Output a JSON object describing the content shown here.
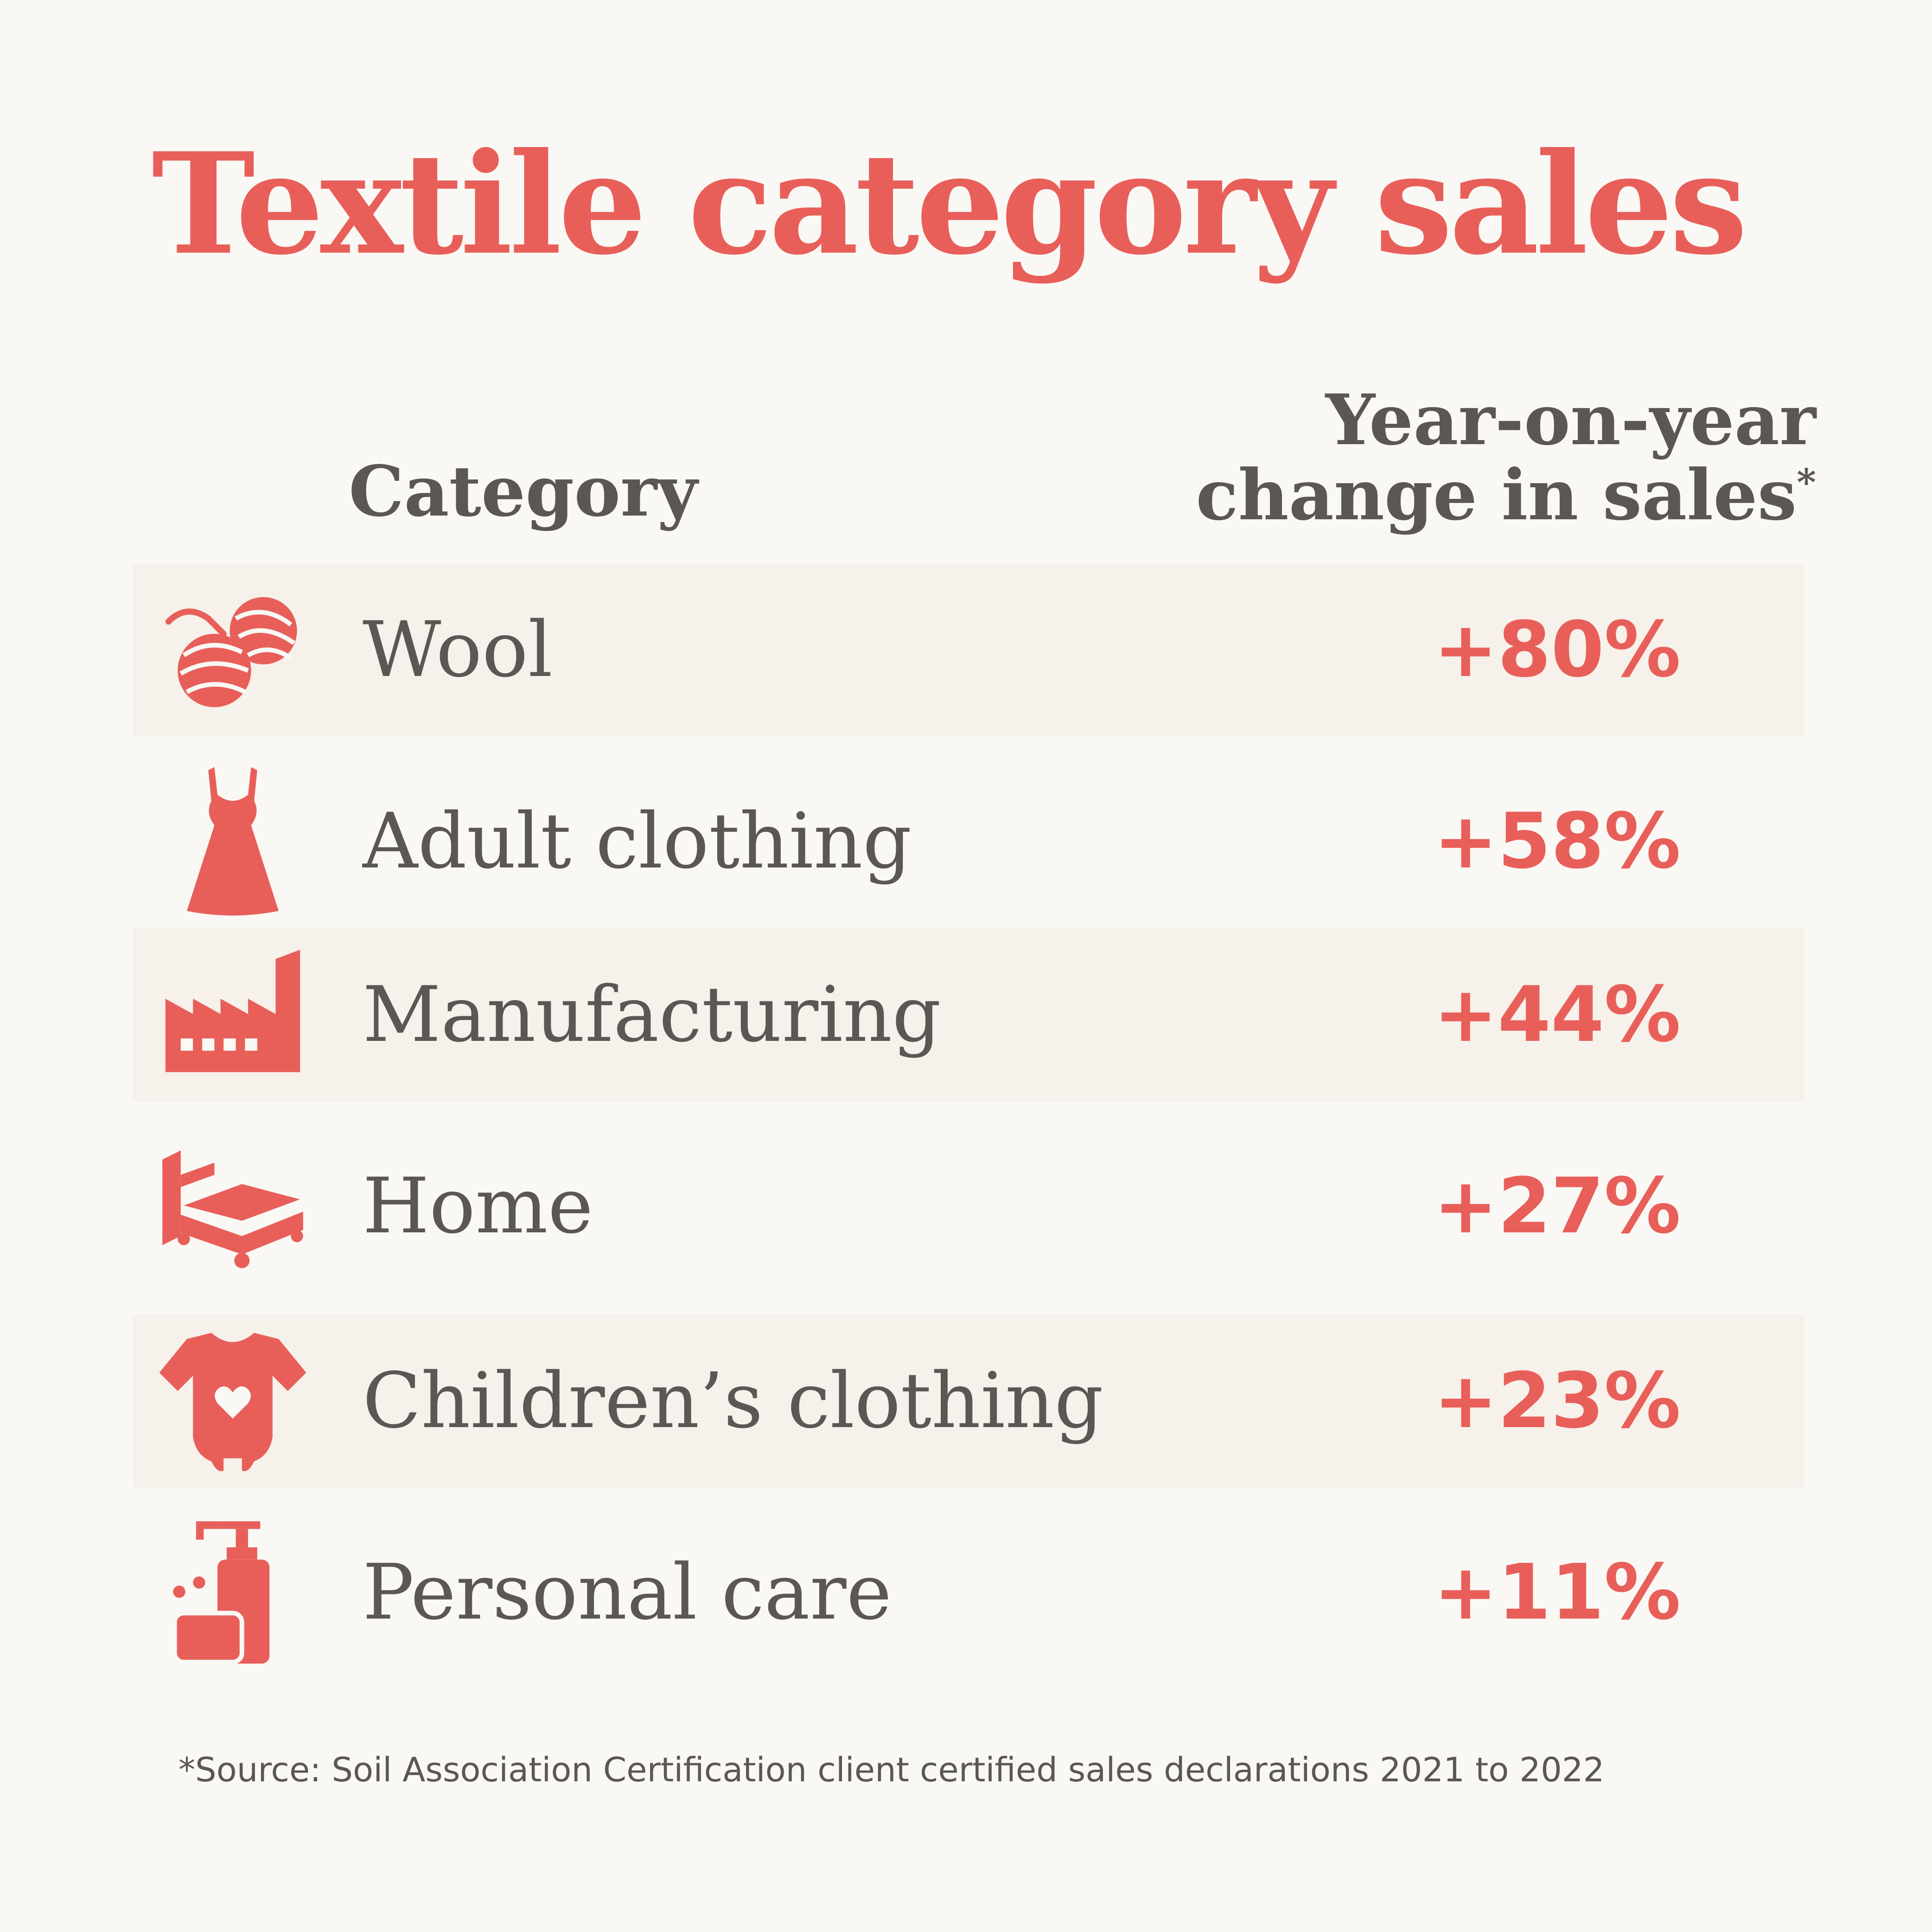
{
  "title": "Textile category sales",
  "header": {
    "category": "Category",
    "change_line1": "Year-on-year",
    "change_line2": "change in sales",
    "change_marker": "*"
  },
  "rows": [
    {
      "label": "Wool",
      "value": "+80%",
      "icon": "yarn-ball-icon"
    },
    {
      "label": "Adult clothing",
      "value": "+58%",
      "icon": "dress-icon"
    },
    {
      "label": "Manufacturing",
      "value": "+44%",
      "icon": "factory-icon"
    },
    {
      "label": "Home",
      "value": "+27%",
      "icon": "bed-icon"
    },
    {
      "label": "Children’s clothing",
      "value": "+23%",
      "icon": "baby-bodysuit-icon"
    },
    {
      "label": "Personal care",
      "value": "+11%",
      "icon": "soap-dispenser-icon"
    }
  ],
  "source": "*Source: Soil Association Certification client certified sales declarations 2021 to 2022",
  "colors": {
    "accent": "#e85f5a",
    "text": "#5a5755",
    "background": "#faf8f4",
    "row_shade": "#f6f1ea"
  },
  "chart_data": {
    "type": "table",
    "title": "Textile category sales",
    "columns": [
      "Category",
      "Year-on-year change in sales*"
    ],
    "categories": [
      "Wool",
      "Adult clothing",
      "Manufacturing",
      "Home",
      "Children’s clothing",
      "Personal care"
    ],
    "values": [
      80,
      58,
      44,
      27,
      23,
      11
    ],
    "unit": "%"
  }
}
